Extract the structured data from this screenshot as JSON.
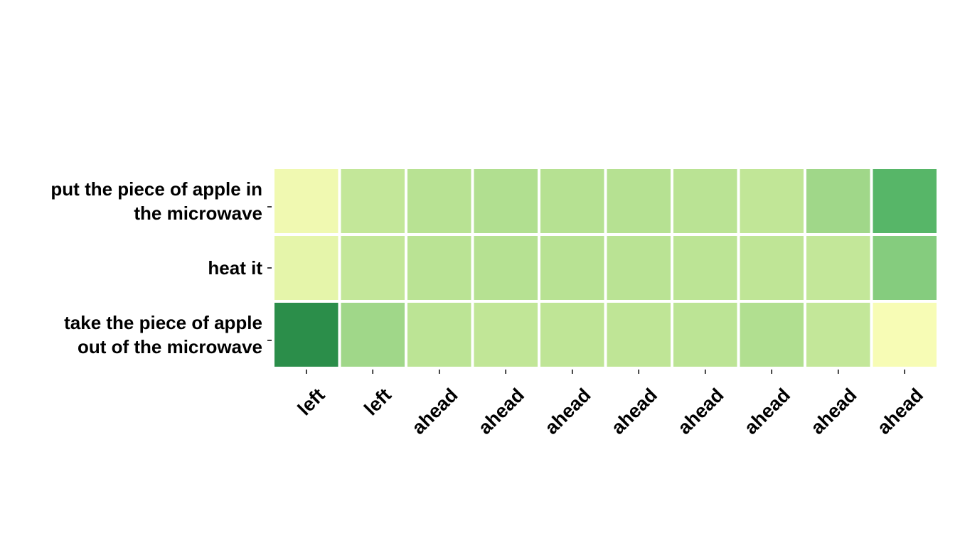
{
  "chart_data": {
    "type": "heatmap",
    "title": "",
    "xlabel": "",
    "ylabel": "",
    "x_categories": [
      "left",
      "left",
      "ahead",
      "ahead",
      "ahead",
      "ahead",
      "ahead",
      "ahead",
      "ahead",
      "ahead"
    ],
    "y_categories": [
      "put the piece of apple in the microwave",
      "heat it",
      "take the piece of apple out of the microwave"
    ],
    "y_tick_lines": [
      [
        "put the piece of apple in",
        "the microwave"
      ],
      [
        "heat it"
      ],
      [
        "take the piece of apple",
        "out of the microwave"
      ]
    ],
    "values": [
      [
        0.05,
        0.3,
        0.35,
        0.38,
        0.36,
        0.36,
        0.34,
        0.31,
        0.45,
        0.72
      ],
      [
        0.12,
        0.3,
        0.34,
        0.36,
        0.35,
        0.34,
        0.33,
        0.32,
        0.3,
        0.55
      ],
      [
        0.95,
        0.45,
        0.33,
        0.31,
        0.32,
        0.32,
        0.33,
        0.38,
        0.3,
        0.0
      ]
    ],
    "vmin": 0,
    "vmax": 1,
    "colormap": "YlGn",
    "color_stops": [
      "#f7fcb5",
      "#d9f0a3",
      "#addd8e",
      "#78c679",
      "#41ab5d",
      "#238443"
    ],
    "colorbar": false,
    "grid_color": "#ffffff"
  }
}
